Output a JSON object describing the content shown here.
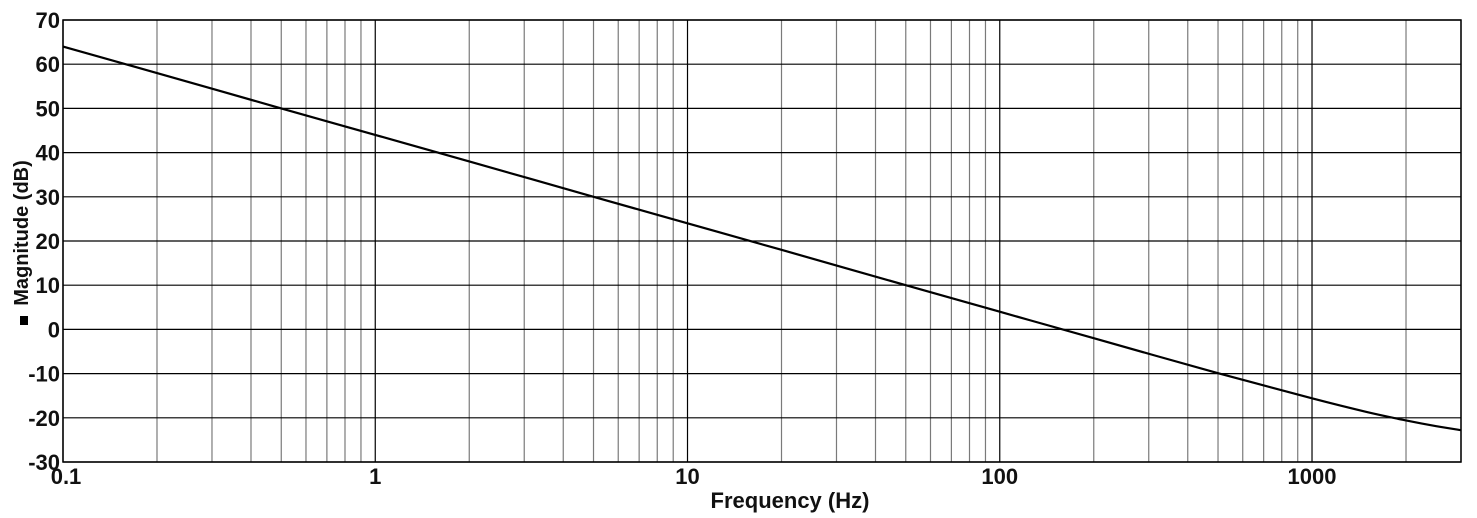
{
  "chart_data": {
    "type": "line",
    "title": "",
    "xlabel": "Frequency (Hz)",
    "ylabel": "Magnitude (dB)",
    "x_scale": "log",
    "xlim": [
      0.1,
      3000
    ],
    "ylim": [
      -30,
      70
    ],
    "grid": true,
    "x_tick_labels": [
      "0.1",
      "1",
      "10",
      "100",
      "1000"
    ],
    "x_tick_values": [
      0.1,
      1,
      10,
      100,
      1000
    ],
    "y_tick_values": [
      70,
      60,
      50,
      40,
      30,
      20,
      10,
      0,
      -10,
      -20,
      -30
    ],
    "y_tick_labels": [
      "70",
      "60",
      "50",
      "40",
      "30",
      "20",
      "10",
      "0",
      "-10",
      "-20",
      "-30"
    ],
    "legend": "inline with y-axis label",
    "series": [
      {
        "color": "#000000",
        "x": [
          0.1,
          0.2,
          0.5,
          1,
          2,
          5,
          10,
          20,
          50,
          100,
          200,
          500,
          1000,
          1500,
          2000,
          2500,
          3000
        ],
        "y": [
          64,
          58,
          50,
          44,
          38,
          30,
          24,
          18,
          10,
          4,
          -2,
          -9.9,
          -15.6,
          -18.7,
          -20.6,
          -21.9,
          -22.8
        ]
      }
    ]
  }
}
